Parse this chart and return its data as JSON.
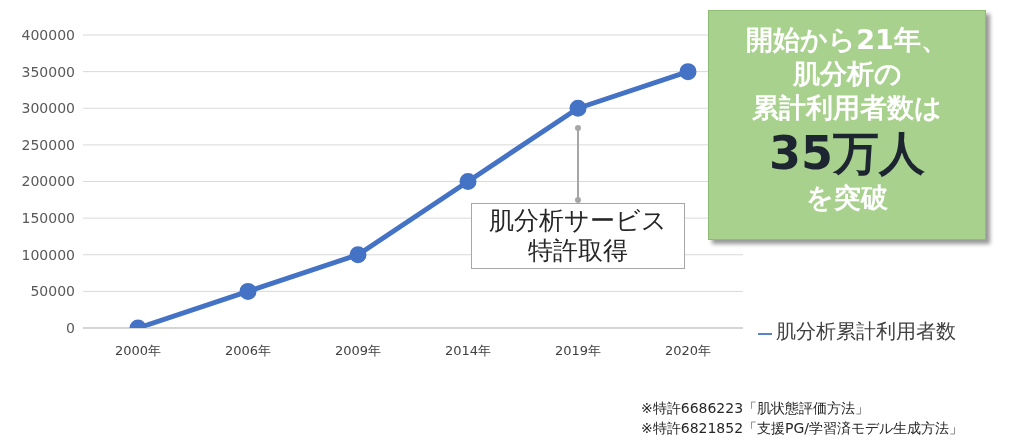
{
  "chart_data": {
    "type": "line",
    "categories": [
      "2000年",
      "2006年",
      "2009年",
      "2014年",
      "2019年",
      "2020年"
    ],
    "series": [
      {
        "name": "肌分析累計利用者数",
        "color": "#4472c4",
        "values": [
          0,
          50000,
          100000,
          200000,
          300000,
          350000
        ]
      }
    ],
    "ylim": [
      0,
      400000
    ],
    "yticks": [
      0,
      50000,
      100000,
      150000,
      200000,
      250000,
      300000,
      350000,
      400000
    ],
    "grid": "y",
    "legend": "right",
    "marker": "circle",
    "line_style": "solid",
    "annotations": [
      "開始から21年、",
      "肌分析の",
      "累計利用者数は",
      "35万人",
      "を突破",
      "肌分析サービス特許取得",
      "※特許6686223「肌状態評価方法」",
      "※特許6821852「支援PG/学習済モデル生成方法」"
    ]
  }
}
